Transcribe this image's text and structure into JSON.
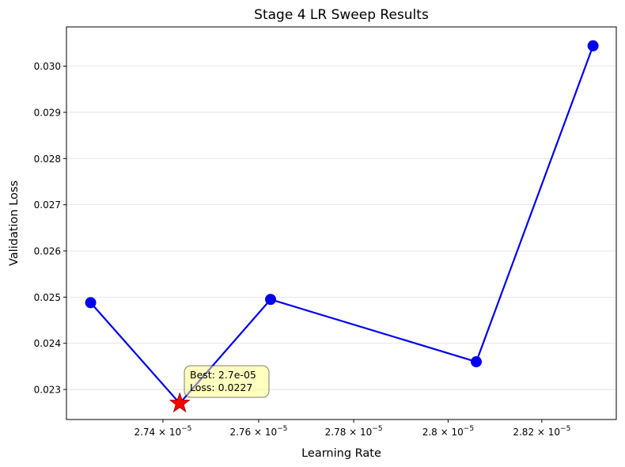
{
  "chart_data": {
    "type": "line",
    "title": "Stage 4 LR Sweep Results",
    "xlabel": "Learning Rate",
    "ylabel": "Validation Loss",
    "x_scale": "log",
    "xlim": [
      2.72e-05,
      2.836e-05
    ],
    "ylim": [
      0.02235,
      0.03085
    ],
    "grid": {
      "y": true,
      "x": false
    },
    "x_ticks": [
      {
        "value": 2.74e-05,
        "mantissa": "2.74",
        "base": "10",
        "exponent": "−5"
      },
      {
        "value": 2.76e-05,
        "mantissa": "2.76",
        "base": "10",
        "exponent": "−5"
      },
      {
        "value": 2.78e-05,
        "mantissa": "2.78",
        "base": "10",
        "exponent": "−5"
      },
      {
        "value": 2.8e-05,
        "mantissa": "2.8",
        "base": "10",
        "exponent": "−5"
      },
      {
        "value": 2.82e-05,
        "mantissa": "2.82",
        "base": "10",
        "exponent": "−5"
      }
    ],
    "y_ticks": [
      {
        "value": 0.023,
        "label": "0.023"
      },
      {
        "value": 0.024,
        "label": "0.024"
      },
      {
        "value": 0.025,
        "label": "0.025"
      },
      {
        "value": 0.026,
        "label": "0.026"
      },
      {
        "value": 0.027,
        "label": "0.027"
      },
      {
        "value": 0.028,
        "label": "0.028"
      },
      {
        "value": 0.029,
        "label": "0.029"
      },
      {
        "value": 0.03,
        "label": "0.030"
      }
    ],
    "series": [
      {
        "color": "#0000ee",
        "x": [
          2.725e-05,
          2.7435e-05,
          2.7625e-05,
          2.806e-05,
          2.831e-05
        ],
        "y": [
          0.02488,
          0.0227,
          0.02495,
          0.0236,
          0.03044
        ]
      }
    ],
    "best_point": {
      "x": 2.7435e-05,
      "y": 0.0227,
      "color": "#ff0000"
    },
    "annotation": {
      "line1": "Best: 2.7e-05",
      "line2": "Loss: 0.0227",
      "background": "#ffff80"
    }
  }
}
